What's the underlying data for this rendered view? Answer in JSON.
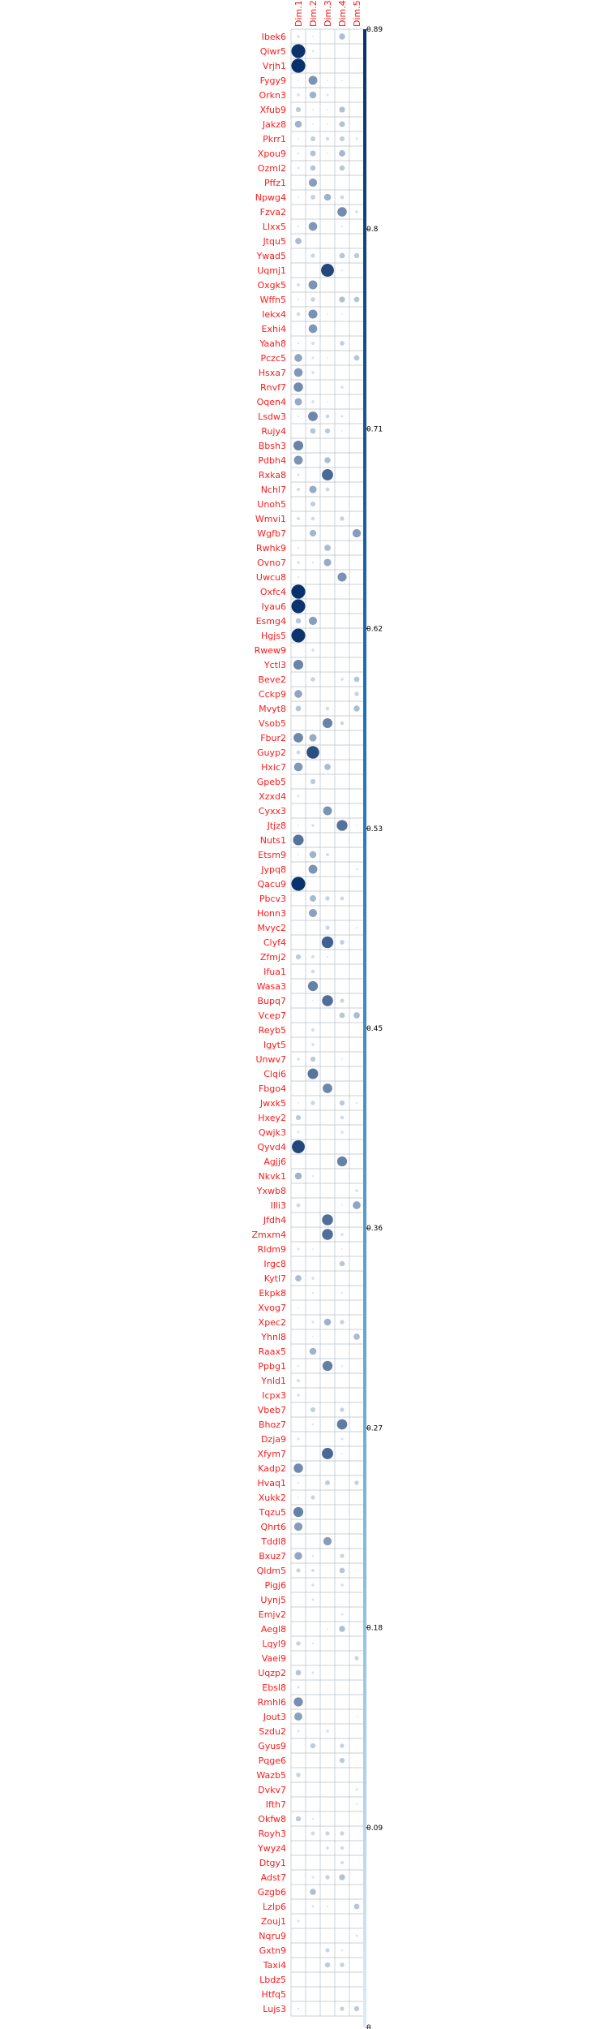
{
  "chart_data": {
    "type": "heatmap",
    "title": "",
    "columns": [
      "Dim.1",
      "Dim.2",
      "Dim.3",
      "Dim.4",
      "Dim.5"
    ],
    "rows": [
      "Ibek6",
      "Qiwr5",
      "Vrjh1",
      "Fygy9",
      "Orkn3",
      "Xfub9",
      "Jakz8",
      "Pkrr1",
      "Xpou9",
      "Ozml2",
      "Pffz1",
      "Npwg4",
      "Fzva2",
      "Llxx5",
      "Jtqu5",
      "Ywad5",
      "Uqmj1",
      "Oxgk5",
      "Wffn5",
      "Iekx4",
      "Exhi4",
      "Yaah8",
      "Pczc5",
      "Hsxa7",
      "Rnvf7",
      "Oqen4",
      "Lsdw3",
      "Rujy4",
      "Bbsh3",
      "Pdbh4",
      "Rxka8",
      "Nchl7",
      "Unoh5",
      "Wmvi1",
      "Wgfb7",
      "Rwhk9",
      "Ovno7",
      "Uwcu8",
      "Oxfc4",
      "Iyau6",
      "Esmg4",
      "Hgjs5",
      "Rwew9",
      "Yctl3",
      "Beve2",
      "Cckp9",
      "Mvyt8",
      "Vsob5",
      "Fbur2",
      "Guyp2",
      "Hxic7",
      "Gpeb5",
      "Xzxd4",
      "Cyxx3",
      "Jtjz8",
      "Nuts1",
      "Etsm9",
      "Jypq8",
      "Qacu9",
      "Pbcv3",
      "Honn3",
      "Mvyc2",
      "Clyf4",
      "Zfmj2",
      "Ifua1",
      "Wasa3",
      "Bupq7",
      "Vcep7",
      "Reyb5",
      "Igyt5",
      "Unwv7",
      "Clqi6",
      "Fbgo4",
      "Jwxk5",
      "Hxey2",
      "Qwjk3",
      "Qyvd4",
      "Agjj6",
      "Nkvk1",
      "Yxwb8",
      "Illi3",
      "Jfdh4",
      "Zmxm4",
      "Rldm9",
      "Irgc8",
      "Kytl7",
      "Ekpk8",
      "Xvog7",
      "Xpec2",
      "Yhnl8",
      "Raax5",
      "Ppbg1",
      "Ynld1",
      "Icpx3",
      "Vbeb7",
      "Bhoz7",
      "Dzja9",
      "Xfym7",
      "Kadp2",
      "Hvaq1",
      "Xukk2",
      "Tqzu5",
      "Qhrt6",
      "Tddl8",
      "Bxuz7",
      "Qldm5",
      "Pigj6",
      "Uynj5",
      "Emjv2",
      "Aegl8",
      "Lqyl9",
      "Vaei9",
      "Uqzp2",
      "Ebsl8",
      "Rmhl6",
      "Jout3",
      "Szdu2",
      "Gyus9",
      "Pqge6",
      "Wazb5",
      "Dvkv7",
      "Ifth7",
      "Okfw8",
      "Royh3",
      "Ywyz4",
      "Dtgy1",
      "Adst7",
      "Gzgb6",
      "Lzlp6",
      "Zouj1",
      "Nqru9",
      "Gxtn9",
      "Taxi4",
      "Lbdz5",
      "Htfq5",
      "Lujs3"
    ],
    "values": [
      [
        0.04,
        0.01,
        0.0,
        0.17,
        0.0
      ],
      [
        0.88,
        0.02,
        0.0,
        0.0,
        0.0
      ],
      [
        0.89,
        0.0,
        0.0,
        0.0,
        0.0
      ],
      [
        0.01,
        0.36,
        0.01,
        0.01,
        0.0
      ],
      [
        0.04,
        0.22,
        0.03,
        0.0,
        0.0
      ],
      [
        0.12,
        0.01,
        0.01,
        0.16,
        0.0
      ],
      [
        0.22,
        0.01,
        0.01,
        0.15,
        0.0
      ],
      [
        0.01,
        0.11,
        0.06,
        0.11,
        0.03
      ],
      [
        0.02,
        0.15,
        0.01,
        0.19,
        0.0
      ],
      [
        0.03,
        0.14,
        0.0,
        0.13,
        0.0
      ],
      [
        0.0,
        0.31,
        0.0,
        0.0,
        0.0
      ],
      [
        0.01,
        0.1,
        0.22,
        0.07,
        0.0
      ],
      [
        0.0,
        0.0,
        0.0,
        0.4,
        0.04
      ],
      [
        0.02,
        0.34,
        0.0,
        0.02,
        0.0
      ],
      [
        0.18,
        0.0,
        0.0,
        0.0,
        0.0
      ],
      [
        0.0,
        0.08,
        0.0,
        0.14,
        0.12
      ],
      [
        0.0,
        0.0,
        0.76,
        0.02,
        0.0
      ],
      [
        0.05,
        0.36,
        0.0,
        0.0,
        0.0
      ],
      [
        0.02,
        0.09,
        0.0,
        0.16,
        0.14
      ],
      [
        0.06,
        0.37,
        0.01,
        0.01,
        0.0
      ],
      [
        0.0,
        0.34,
        0.0,
        0.0,
        0.0
      ],
      [
        0.02,
        0.05,
        0.0,
        0.1,
        0.0
      ],
      [
        0.28,
        0.03,
        0.01,
        0.0,
        0.14
      ],
      [
        0.34,
        0.04,
        0.0,
        0.0,
        0.0
      ],
      [
        0.4,
        0.0,
        0.0,
        0.04,
        0.0
      ],
      [
        0.25,
        0.04,
        0.01,
        0.0,
        0.0
      ],
      [
        0.02,
        0.42,
        0.07,
        0.03,
        0.0
      ],
      [
        0.0,
        0.14,
        0.12,
        0.01,
        0.0
      ],
      [
        0.44,
        0.0,
        0.0,
        0.0,
        0.0
      ],
      [
        0.36,
        0.0,
        0.17,
        0.0,
        0.0
      ],
      [
        0.03,
        0.0,
        0.58,
        0.0,
        0.0
      ],
      [
        0.05,
        0.25,
        0.07,
        0.0,
        0.0
      ],
      [
        0.0,
        0.11,
        0.0,
        0.0,
        0.0
      ],
      [
        0.05,
        0.06,
        0.0,
        0.09,
        0.0
      ],
      [
        0.0,
        0.2,
        0.0,
        0.0,
        0.32
      ],
      [
        0.02,
        0.0,
        0.18,
        0.0,
        0.0
      ],
      [
        0.04,
        0.02,
        0.25,
        0.0,
        0.0
      ],
      [
        0.02,
        0.0,
        0.0,
        0.37,
        0.0
      ],
      [
        0.89,
        0.0,
        0.0,
        0.0,
        0.0
      ],
      [
        0.87,
        0.0,
        0.0,
        0.0,
        0.0
      ],
      [
        0.13,
        0.31,
        0.0,
        0.0,
        0.0
      ],
      [
        0.87,
        0.0,
        0.0,
        0.0,
        0.0
      ],
      [
        0.0,
        0.04,
        0.0,
        0.0,
        0.0
      ],
      [
        0.44,
        0.0,
        0.0,
        0.0,
        0.0
      ],
      [
        0.0,
        0.09,
        0.0,
        0.04,
        0.14
      ],
      [
        0.28,
        0.0,
        0.0,
        0.0,
        0.09
      ],
      [
        0.14,
        0.0,
        0.06,
        0.0,
        0.17
      ],
      [
        0.0,
        0.0,
        0.44,
        0.07,
        0.0
      ],
      [
        0.42,
        0.25,
        0.0,
        0.0,
        0.0
      ],
      [
        0.07,
        0.72,
        0.0,
        0.0,
        0.0
      ],
      [
        0.34,
        0.0,
        0.18,
        0.0,
        0.0
      ],
      [
        0.0,
        0.12,
        0.0,
        0.0,
        0.0
      ],
      [
        0.03,
        0.0,
        0.0,
        0.0,
        0.0
      ],
      [
        0.0,
        0.0,
        0.36,
        0.0,
        0.0
      ],
      [
        0.01,
        0.04,
        0.0,
        0.53,
        0.01
      ],
      [
        0.52,
        0.0,
        0.0,
        0.0,
        0.0
      ],
      [
        0.01,
        0.22,
        0.05,
        0.0,
        0.0
      ],
      [
        0.0,
        0.36,
        0.0,
        0.0,
        0.02
      ],
      [
        0.88,
        0.0,
        0.0,
        0.0,
        0.0
      ],
      [
        0.0,
        0.19,
        0.09,
        0.07,
        0.0
      ],
      [
        0.0,
        0.3,
        0.0,
        0.0,
        0.0
      ],
      [
        0.0,
        0.0,
        0.08,
        0.0,
        0.02
      ],
      [
        0.0,
        0.0,
        0.62,
        0.1,
        0.0
      ],
      [
        0.12,
        0.05,
        0.02,
        0.0,
        0.0
      ],
      [
        0.0,
        0.06,
        0.0,
        0.0,
        0.0
      ],
      [
        0.0,
        0.45,
        0.0,
        0.0,
        0.0
      ],
      [
        0.0,
        0.01,
        0.55,
        0.08,
        0.0
      ],
      [
        0.0,
        0.0,
        0.0,
        0.14,
        0.18
      ],
      [
        0.0,
        0.05,
        0.0,
        0.0,
        0.0
      ],
      [
        0.0,
        0.04,
        0.0,
        0.0,
        0.0
      ],
      [
        0.04,
        0.12,
        0.0,
        0.01,
        0.0
      ],
      [
        0.0,
        0.51,
        0.0,
        0.0,
        0.0
      ],
      [
        0.0,
        0.0,
        0.42,
        0.0,
        0.0
      ],
      [
        0.01,
        0.08,
        0.0,
        0.12,
        0.02
      ],
      [
        0.12,
        0.0,
        0.0,
        0.06,
        0.0
      ],
      [
        0.03,
        0.0,
        0.0,
        0.04,
        0.0
      ],
      [
        0.76,
        0.0,
        0.0,
        0.0,
        0.0
      ],
      [
        0.0,
        0.0,
        0.0,
        0.45,
        0.0
      ],
      [
        0.22,
        0.02,
        0.0,
        0.0,
        0.0
      ],
      [
        0.0,
        0.0,
        0.0,
        0.0,
        0.04
      ],
      [
        0.07,
        0.0,
        0.0,
        0.01,
        0.28
      ],
      [
        0.0,
        0.0,
        0.55,
        0.0,
        0.0
      ],
      [
        0.0,
        0.0,
        0.55,
        0.04,
        0.0
      ],
      [
        0.03,
        0.01,
        0.0,
        0.01,
        0.0
      ],
      [
        0.0,
        0.0,
        0.0,
        0.13,
        0.0
      ],
      [
        0.18,
        0.04,
        0.0,
        0.0,
        0.0
      ],
      [
        0.0,
        0.02,
        0.0,
        0.02,
        0.0
      ],
      [
        0.01,
        0.0,
        0.0,
        0.0,
        0.0
      ],
      [
        0.0,
        0.03,
        0.22,
        0.09,
        0.0
      ],
      [
        0.0,
        0.01,
        0.0,
        0.0,
        0.18
      ],
      [
        0.0,
        0.22,
        0.0,
        0.0,
        0.0
      ],
      [
        0.02,
        0.0,
        0.46,
        0.02,
        0.0
      ],
      [
        0.05,
        0.0,
        0.0,
        0.0,
        0.0
      ],
      [
        0.04,
        0.0,
        0.0,
        0.0,
        0.0
      ],
      [
        0.0,
        0.11,
        0.0,
        0.09,
        0.0
      ],
      [
        0.0,
        0.02,
        0.0,
        0.48,
        0.0
      ],
      [
        0.03,
        0.0,
        0.0,
        0.03,
        0.0
      ],
      [
        0.0,
        0.0,
        0.58,
        0.01,
        0.0
      ],
      [
        0.4,
        0.0,
        0.0,
        0.0,
        0.0
      ],
      [
        0.02,
        0.0,
        0.11,
        0.0,
        0.09
      ],
      [
        0.01,
        0.08,
        0.0,
        0.0,
        0.0
      ],
      [
        0.45,
        0.0,
        0.0,
        0.0,
        0.0
      ],
      [
        0.32,
        0.0,
        0.0,
        0.0,
        0.0
      ],
      [
        0.0,
        0.0,
        0.32,
        0.0,
        0.0
      ],
      [
        0.27,
        0.02,
        0.0,
        0.08,
        0.0
      ],
      [
        0.08,
        0.05,
        0.0,
        0.14,
        0.01
      ],
      [
        0.0,
        0.04,
        0.0,
        0.04,
        0.0
      ],
      [
        0.0,
        0.03,
        0.0,
        0.0,
        0.0
      ],
      [
        0.0,
        0.0,
        0.0,
        0.03,
        0.0
      ],
      [
        0.0,
        0.0,
        0.01,
        0.17,
        0.0
      ],
      [
        0.09,
        0.02,
        0.0,
        0.0,
        0.0
      ],
      [
        0.0,
        0.0,
        0.0,
        0.0,
        0.08
      ],
      [
        0.14,
        0.03,
        0.0,
        0.0,
        0.0
      ],
      [
        0.03,
        0.0,
        0.0,
        0.0,
        0.0
      ],
      [
        0.38,
        0.0,
        0.0,
        0.0,
        0.0
      ],
      [
        0.3,
        0.0,
        0.0,
        0.0,
        0.01
      ],
      [
        0.03,
        0.0,
        0.04,
        0.0,
        0.0
      ],
      [
        0.0,
        0.12,
        0.0,
        0.09,
        0.0
      ],
      [
        0.0,
        0.0,
        0.0,
        0.12,
        0.0
      ],
      [
        0.09,
        0.0,
        0.0,
        0.0,
        0.0
      ],
      [
        0.0,
        0.0,
        0.0,
        0.0,
        0.03
      ],
      [
        0.0,
        0.0,
        0.0,
        0.0,
        0.02
      ],
      [
        0.12,
        0.02,
        0.0,
        0.0,
        0.0
      ],
      [
        0.0,
        0.07,
        0.08,
        0.08,
        0.0
      ],
      [
        0.0,
        0.0,
        0.04,
        0.06,
        0.0
      ],
      [
        0.0,
        0.0,
        0.0,
        0.05,
        0.0
      ],
      [
        0.0,
        0.03,
        0.09,
        0.16,
        0.0
      ],
      [
        0.0,
        0.17,
        0.0,
        0.0,
        0.0
      ],
      [
        0.0,
        0.03,
        0.02,
        0.0,
        0.14
      ],
      [
        0.03,
        0.0,
        0.0,
        0.0,
        0.0
      ],
      [
        0.0,
        0.0,
        0.0,
        0.0,
        0.03
      ],
      [
        0.0,
        0.0,
        0.08,
        0.02,
        0.0
      ],
      [
        0.0,
        0.0,
        0.12,
        0.09,
        0.0
      ],
      [
        0.0,
        0.0,
        0.0,
        0.0,
        0.0
      ],
      [
        0.0,
        0.0,
        0.0,
        0.0,
        0.0
      ],
      [
        0.02,
        0.0,
        0.0,
        0.09,
        0.12
      ]
    ],
    "scale": {
      "min": 0,
      "max": 0.89,
      "tick_labels": [
        "0.89",
        "0.8",
        "0.71",
        "0.62",
        "0.53",
        "0.45",
        "0.36",
        "0.27",
        "0.18",
        "0.09",
        "0"
      ]
    },
    "color_low": "#e8f1fb",
    "color_high": "#08306b",
    "label_color": "#ff1a1a",
    "grid": true,
    "legend": "right"
  }
}
